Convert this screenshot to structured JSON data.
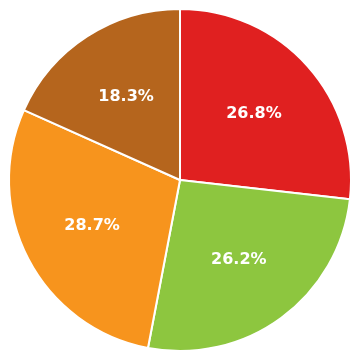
{
  "chart_data": {
    "type": "pie",
    "values": [
      26.8,
      26.2,
      28.7,
      18.3
    ],
    "value_labels": [
      "26.8%",
      "26.2%",
      "28.7%",
      "18.3%"
    ],
    "colors": [
      "#e02020",
      "#8dc63f",
      "#f7941d",
      "#b5651d"
    ],
    "data_labels": true
  }
}
